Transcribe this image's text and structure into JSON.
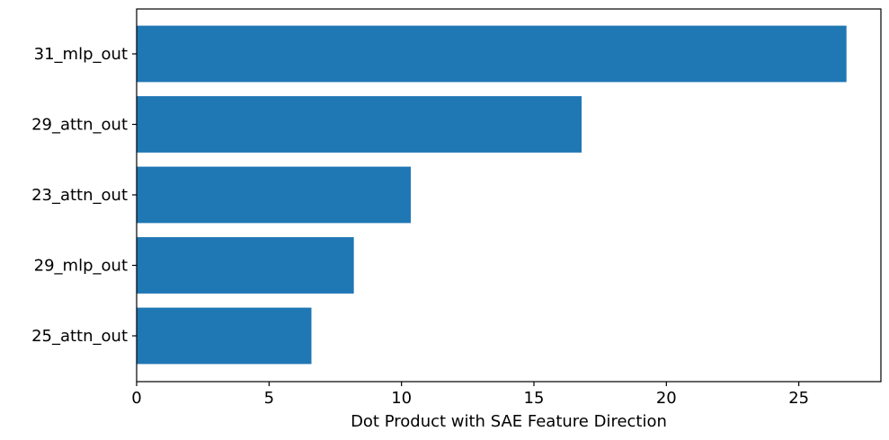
{
  "chart_data": {
    "type": "bar",
    "orientation": "horizontal",
    "title": "",
    "xlabel": "Dot Product with SAE Feature Direction",
    "ylabel": "",
    "categories": [
      "31_mlp_out",
      "29_attn_out",
      "23_attn_out",
      "29_mlp_out",
      "25_attn_out"
    ],
    "values": [
      26.8,
      16.8,
      10.35,
      8.2,
      6.6
    ],
    "xlim": [
      0,
      28.1
    ],
    "xticks": [
      0,
      5,
      10,
      15,
      20,
      25
    ],
    "xtick_labels": [
      "0",
      "5",
      "10",
      "15",
      "20",
      "25"
    ],
    "grid": false,
    "bar_color": "#1f77b4"
  }
}
